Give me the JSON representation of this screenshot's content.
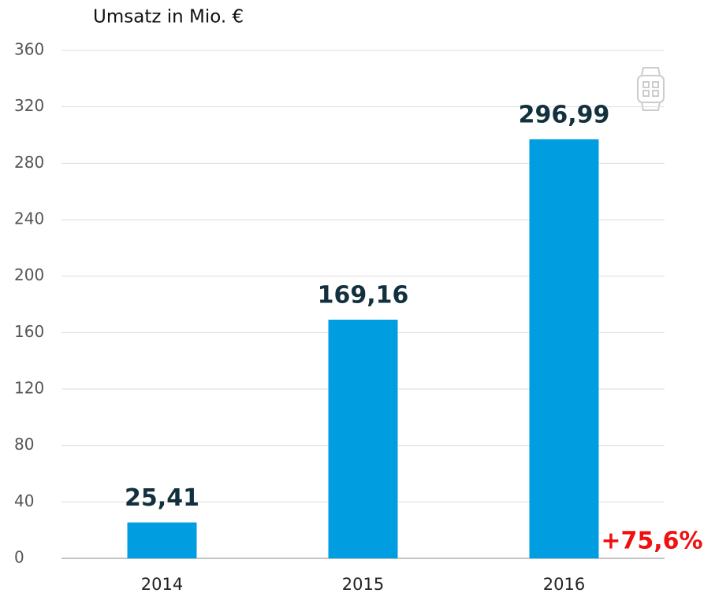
{
  "chart_data": {
    "type": "bar",
    "title": "Umsatz in Mio. €",
    "categories": [
      "2014",
      "2015",
      "2016"
    ],
    "values": [
      25.41,
      169.16,
      296.99
    ],
    "value_labels": [
      "25,41",
      "169,16",
      "296,99"
    ],
    "color": "#009ee0",
    "ylim": [
      0,
      360
    ],
    "yticks": [
      0,
      40,
      80,
      120,
      160,
      200,
      240,
      280,
      320,
      360
    ],
    "grid": true,
    "annotation": "+75,6%"
  }
}
